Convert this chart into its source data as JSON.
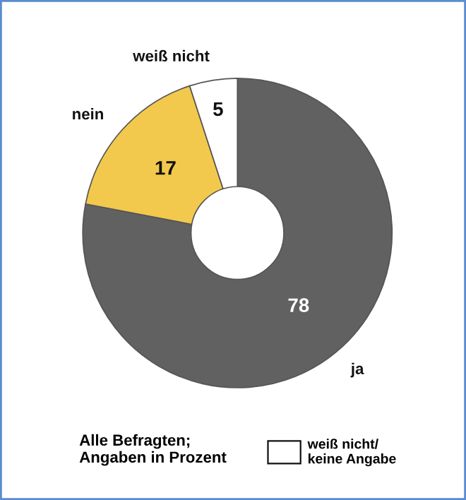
{
  "chart_data": {
    "type": "donut",
    "categories": [
      "ja",
      "nein",
      "weiß nicht"
    ],
    "values": [
      78,
      17,
      5
    ],
    "colors": [
      "#616161",
      "#f2c94c",
      "#ffffff"
    ],
    "data_labels": true,
    "annotations": [
      "Alle Befragten;\nAngaben in Prozent",
      "weiß nicht/\nkeine Angabe"
    ]
  }
}
